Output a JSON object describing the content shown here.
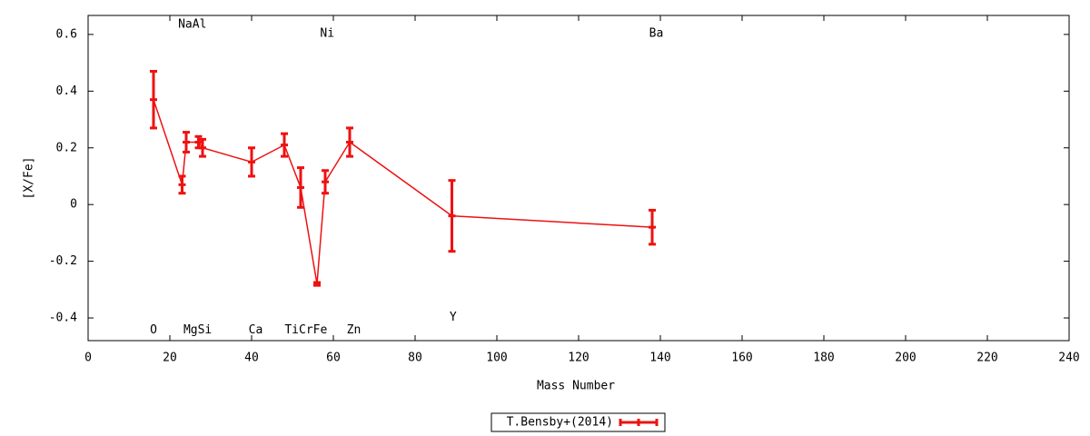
{
  "chart_data": {
    "type": "errorline",
    "x_label": "Mass Number",
    "y_label": "[X/Fe]",
    "xlim": [
      0,
      240
    ],
    "xticks": [
      0,
      20,
      40,
      60,
      80,
      100,
      120,
      140,
      160,
      180,
      200,
      220,
      240
    ],
    "ylim": [
      -0.48,
      0.667
    ],
    "yticks": [
      -0.4,
      -0.2,
      0,
      0.2,
      0.4,
      0.6
    ],
    "legend": "bottom",
    "series": [
      {
        "name": "T.Bensby+(2014)",
        "color": "#ee1111",
        "x": [
          16,
          23,
          24,
          27,
          28,
          40,
          48,
          52,
          56,
          58,
          64,
          89,
          138
        ],
        "values": [
          0.37,
          0.07,
          0.22,
          0.22,
          0.2,
          0.15,
          0.21,
          0.06,
          -0.28,
          0.08,
          0.22,
          -0.04,
          -0.08
        ],
        "errors": [
          0.1,
          0.03,
          0.035,
          0.02,
          0.03,
          0.05,
          0.04,
          0.07,
          0.005,
          0.04,
          0.05,
          0.125,
          0.06
        ]
      }
    ],
    "annotations": [
      {
        "text": "NaAl",
        "x": 25.5,
        "y": 0.635
      },
      {
        "text": "Ni",
        "x": 58.5,
        "y": 0.603
      },
      {
        "text": "Ba",
        "x": 139,
        "y": 0.603
      },
      {
        "text": "O",
        "x": 16,
        "y": -0.443
      },
      {
        "text": "MgSi",
        "x": 26.8,
        "y": -0.443
      },
      {
        "text": "Ca",
        "x": 41,
        "y": -0.443
      },
      {
        "text": "TiCrFe",
        "x": 53.3,
        "y": -0.443
      },
      {
        "text": "Zn",
        "x": 65,
        "y": -0.443
      },
      {
        "text": "Y",
        "x": 89.3,
        "y": -0.398
      }
    ]
  }
}
